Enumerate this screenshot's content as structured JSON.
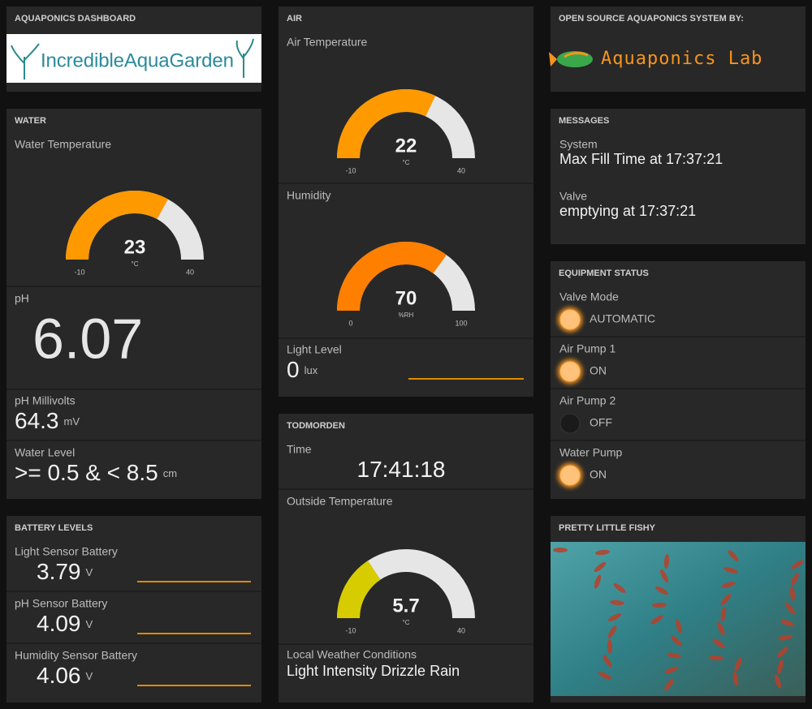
{
  "dashboard": {
    "title": "AQUAPONICS DASHBOARD",
    "logo": "IncredibleAquaGarden"
  },
  "water": {
    "title": "WATER",
    "temperature": {
      "label": "Water Temperature",
      "value": 23,
      "unit": "°C",
      "min": -10,
      "max": 40,
      "color": "#ff9900"
    },
    "ph": {
      "label": "pH",
      "value": 6.07
    },
    "ph_millivolts": {
      "label": "pH Millivolts",
      "value": 64.3,
      "unit": "mV"
    },
    "level": {
      "label": "Water Level",
      "value": ">= 0.5 & < 8.5",
      "unit": "cm"
    }
  },
  "battery": {
    "title": "BATTERY LEVELS",
    "items": [
      {
        "label": "Light Sensor Battery",
        "value": 3.79,
        "unit": "V"
      },
      {
        "label": "pH Sensor Battery",
        "value": 4.09,
        "unit": "V"
      },
      {
        "label": "Humidity Sensor Battery",
        "value": 4.06,
        "unit": "V"
      }
    ]
  },
  "air": {
    "title": "AIR",
    "temperature": {
      "label": "Air Temperature",
      "value": 22,
      "unit": "°C",
      "min": -10,
      "max": 40,
      "color": "#ff9900"
    },
    "humidity": {
      "label": "Humidity",
      "value": 70,
      "unit": "%RH",
      "min": 0,
      "max": 100,
      "color": "#ff7f00"
    },
    "light": {
      "label": "Light Level",
      "value": 0,
      "unit": "lux"
    }
  },
  "todmorden": {
    "title": "TODMORDEN",
    "time": {
      "label": "Time",
      "value": "17:41:18"
    },
    "outside_temperature": {
      "label": "Outside Temperature",
      "value": 5.7,
      "unit": "°C",
      "min": -10,
      "max": 40,
      "color": "#d6cc00"
    },
    "weather": {
      "label": "Local Weather Conditions",
      "value": "Light Intensity Drizzle Rain"
    }
  },
  "sponsor": {
    "title": "OPEN SOURCE AQUAPONICS SYSTEM BY:",
    "logo": "Aquaponics Lab"
  },
  "messages": {
    "title": "MESSAGES",
    "items": [
      {
        "label": "System",
        "text": "Max Fill Time at 17:37:21"
      },
      {
        "label": "Valve",
        "text": "emptying at 17:37:21"
      }
    ]
  },
  "equipment": {
    "title": "EQUIPMENT STATUS",
    "items": [
      {
        "label": "Valve Mode",
        "state": "AUTOMATIC",
        "on": true
      },
      {
        "label": "Air Pump 1",
        "state": "ON",
        "on": true
      },
      {
        "label": "Air Pump 2",
        "state": "OFF",
        "on": false
      },
      {
        "label": "Water Pump",
        "state": "ON",
        "on": true
      }
    ]
  },
  "fishy": {
    "title": "PRETTY LITTLE FISHY"
  }
}
